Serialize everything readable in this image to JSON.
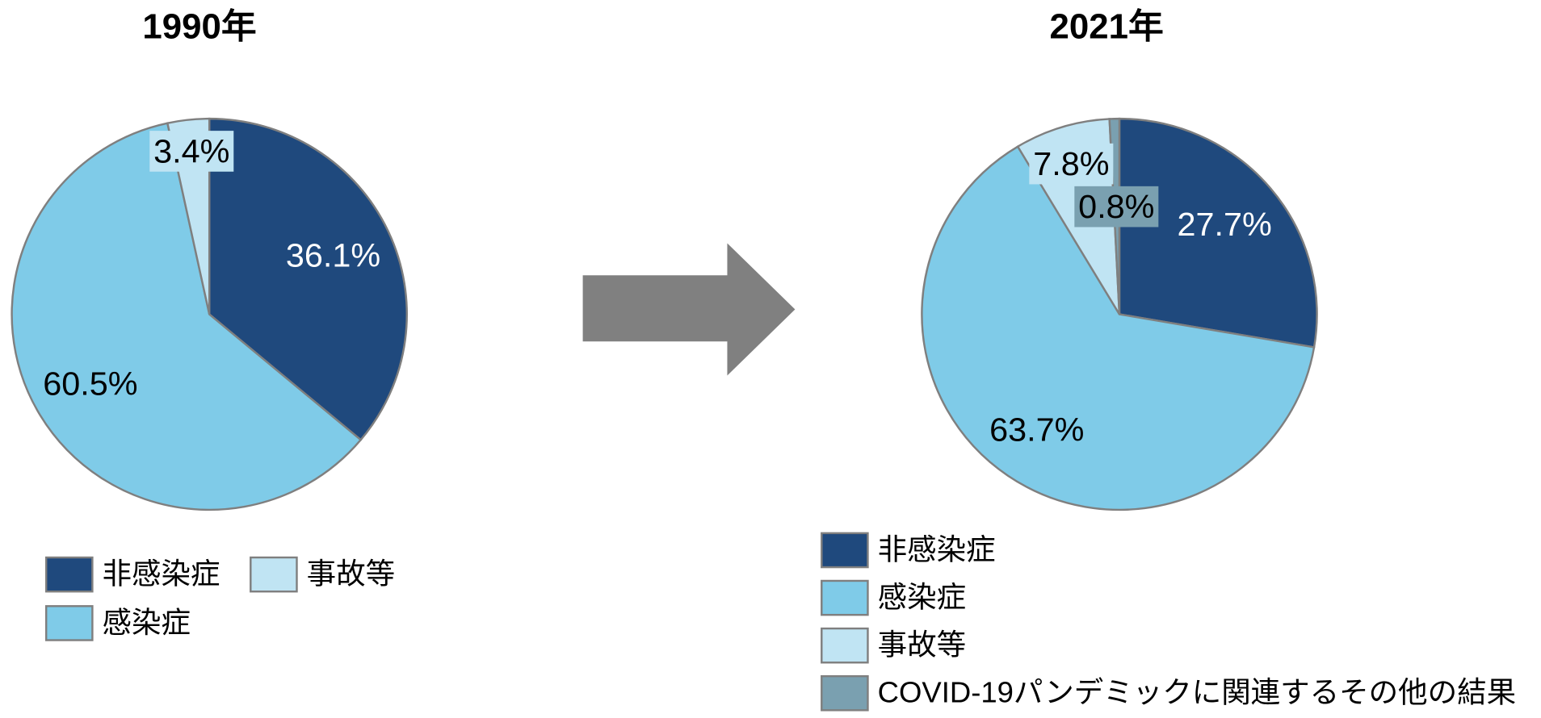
{
  "chart_data": [
    {
      "type": "pie",
      "title": "1990年",
      "categories": [
        "非感染症",
        "感染症",
        "事故等"
      ],
      "values": [
        36.1,
        60.5,
        3.4
      ],
      "value_labels": [
        "36.1%",
        "60.5%",
        "3.4%"
      ],
      "colors": [
        "#1f497d",
        "#7fcbe8",
        "#c0e4f3"
      ]
    },
    {
      "type": "pie",
      "title": "2021年",
      "categories": [
        "非感染症",
        "感染症",
        "事故等",
        "COVID-19パンデミックに関連するその他の結果"
      ],
      "values": [
        27.7,
        63.7,
        7.8,
        0.8
      ],
      "value_labels": [
        "27.7%",
        "63.7%",
        "7.8%",
        "0.8%"
      ],
      "colors": [
        "#1f497d",
        "#7fcbe8",
        "#c0e4f3",
        "#7aa0b0"
      ]
    }
  ]
}
